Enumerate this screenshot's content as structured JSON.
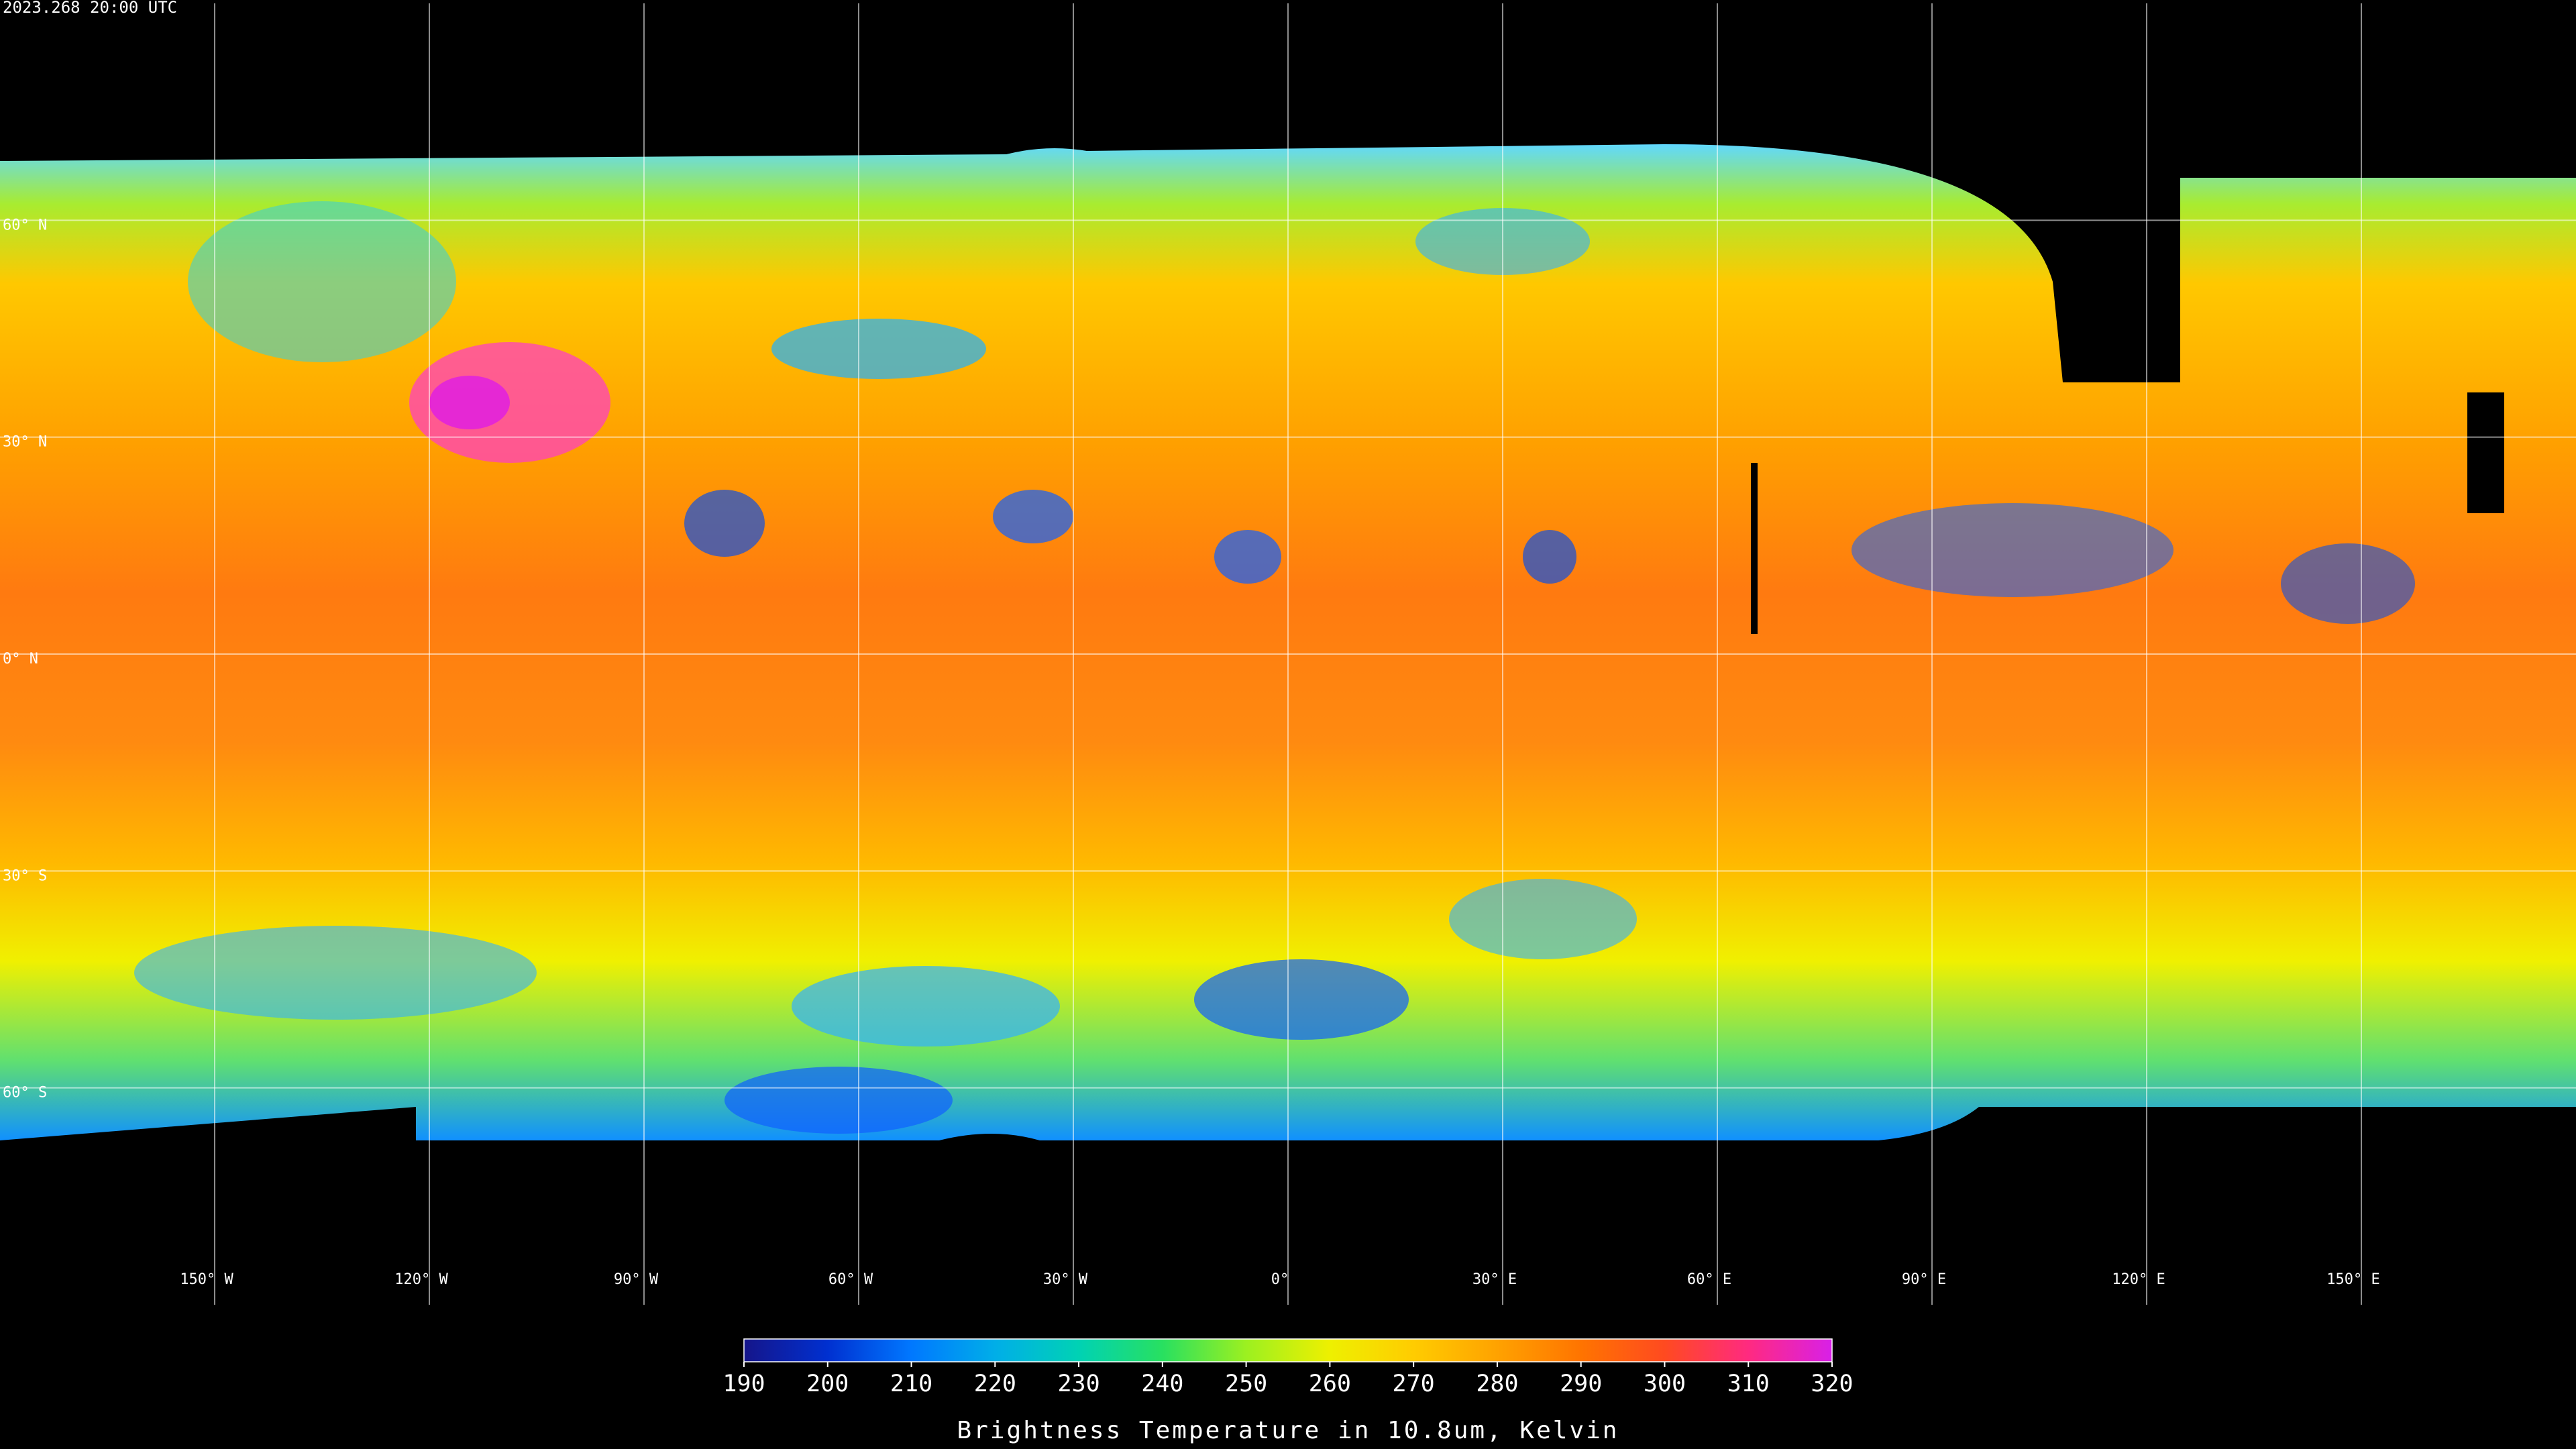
{
  "timestamp": "2023.268 20:00 UTC",
  "map": {
    "lat_ticks": [
      {
        "value": 60,
        "label": "60° N"
      },
      {
        "value": 30,
        "label": "30° N"
      },
      {
        "value": 0,
        "label": "0° N"
      },
      {
        "value": -30,
        "label": "30° S"
      },
      {
        "value": -60,
        "label": "60° S"
      }
    ],
    "lon_ticks": [
      {
        "value": -150,
        "label": "150° W"
      },
      {
        "value": -120,
        "label": "120° W"
      },
      {
        "value": -90,
        "label": "90° W"
      },
      {
        "value": -60,
        "label": "60° W"
      },
      {
        "value": -30,
        "label": "30° W"
      },
      {
        "value": 0,
        "label": "0°"
      },
      {
        "value": 30,
        "label": "30° E"
      },
      {
        "value": 60,
        "label": "60° E"
      },
      {
        "value": 90,
        "label": "90° E"
      },
      {
        "value": 120,
        "label": "120° E"
      },
      {
        "value": 150,
        "label": "150° E"
      }
    ],
    "latlim": [
      90,
      -90
    ],
    "lonlim": [
      -180,
      180
    ]
  },
  "colorbar": {
    "label": "Brightness Temperature in 10.8um, Kelvin",
    "range": [
      190,
      320
    ],
    "ticks": [
      190,
      200,
      210,
      220,
      230,
      240,
      250,
      260,
      270,
      280,
      290,
      300,
      310,
      320
    ],
    "colors": [
      "#15158a",
      "#0030d0",
      "#0078ff",
      "#00aee8",
      "#00d2b4",
      "#28e060",
      "#9cf020",
      "#eef000",
      "#ffcc00",
      "#ffa200",
      "#ff7400",
      "#ff4a20",
      "#ff2a80",
      "#d820e8"
    ]
  }
}
